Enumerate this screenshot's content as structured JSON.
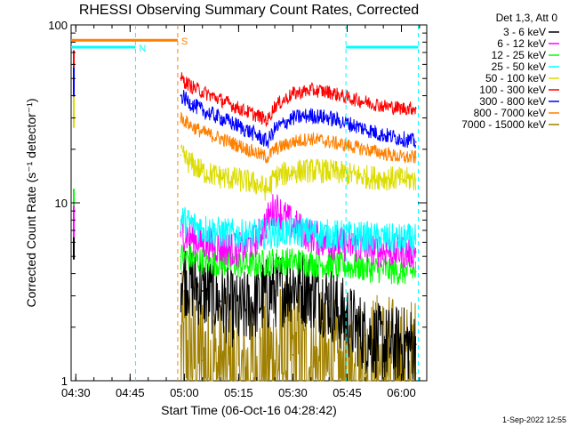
{
  "chart_data": {
    "type": "line",
    "title": "RHESSI Observing Summary Count Rates, Corrected",
    "xlabel": "Start Time (06-Oct-16 04:28:42)",
    "ylabel": "Corrected Count Rate (s⁻¹ detector⁻¹)",
    "y_scale": "log",
    "ylim": [
      1,
      100
    ],
    "xlim": [
      "04:28:42",
      "06:07:00"
    ],
    "x_ticks": [
      "04:30",
      "04:45",
      "05:00",
      "05:15",
      "05:30",
      "05:45",
      "06:00"
    ],
    "y_ticks": [
      "1",
      "10",
      "100"
    ],
    "legend_title": "Det 1,3, Att 0",
    "legend_position": "right",
    "grid": false,
    "footer": "1-Sep-2022 12:55",
    "annotations": [
      {
        "label": "N",
        "color": "#00ffff",
        "x_start": "04:28:42",
        "x_end": "04:46:30",
        "y": 75
      },
      {
        "label": "S",
        "color": "#ff8000",
        "x_start": "04:28:42",
        "x_end": "04:58:10",
        "y": 82
      },
      {
        "label": "",
        "color": "#00ffff",
        "x_start": "05:44:40",
        "x_end": "06:04:40",
        "y": 75
      }
    ],
    "vlines": [
      {
        "x": "04:46:30",
        "color": "#00ffff"
      },
      {
        "x": "04:58:10",
        "color": "#ff8000"
      },
      {
        "x": "05:44:40",
        "color": "#00ffff"
      },
      {
        "x": "06:04:40",
        "color": "#00ffff"
      }
    ],
    "series": [
      {
        "name": "3 - 6 keV",
        "color": "#000000",
        "x": [
          "04:59",
          "05:05",
          "05:10",
          "05:15",
          "05:20",
          "05:25",
          "05:30",
          "05:35",
          "05:40",
          "05:45",
          "05:50",
          "05:55",
          "06:00",
          "06:04"
        ],
        "values": [
          4.0,
          3.2,
          2.8,
          2.4,
          2.8,
          3.2,
          3.5,
          3.2,
          2.8,
          2.2,
          1.8,
          1.6,
          1.6,
          1.6
        ]
      },
      {
        "name": "6 - 12 keV",
        "color": "#ff00ff",
        "x": [
          "04:59",
          "05:05",
          "05:10",
          "05:15",
          "05:20",
          "05:25",
          "05:30",
          "05:35",
          "05:40",
          "05:45",
          "05:50",
          "05:55",
          "06:00",
          "06:04"
        ],
        "values": [
          6.8,
          6.0,
          5.6,
          5.4,
          6.2,
          9.5,
          7.5,
          6.5,
          6.0,
          5.8,
          5.6,
          5.4,
          5.3,
          5.3
        ]
      },
      {
        "name": "12 - 25 keV",
        "color": "#00ff00",
        "x": [
          "04:59",
          "05:05",
          "05:10",
          "05:15",
          "05:20",
          "05:25",
          "05:30",
          "05:35",
          "05:40",
          "05:45",
          "05:50",
          "05:55",
          "06:00",
          "06:04"
        ],
        "values": [
          5.0,
          4.7,
          4.6,
          4.5,
          4.5,
          4.7,
          4.7,
          4.6,
          4.5,
          4.4,
          4.3,
          4.2,
          4.1,
          4.1
        ]
      },
      {
        "name": "25 - 50 keV",
        "color": "#00ffff",
        "x": [
          "04:59",
          "05:05",
          "05:10",
          "05:15",
          "05:20",
          "05:25",
          "05:30",
          "05:35",
          "05:40",
          "05:45",
          "05:50",
          "05:55",
          "06:00",
          "06:04"
        ],
        "values": [
          8.0,
          7.2,
          6.8,
          6.6,
          6.6,
          6.8,
          6.9,
          6.8,
          6.6,
          6.5,
          6.4,
          6.3,
          6.2,
          6.2
        ]
      },
      {
        "name": "50 - 100 keV",
        "color": "#dcdc00",
        "x": [
          "04:59",
          "05:02",
          "05:05",
          "05:10",
          "05:15",
          "05:20",
          "05:23",
          "05:25",
          "05:30",
          "05:35",
          "05:40",
          "05:45",
          "05:50",
          "05:55",
          "06:00",
          "06:04"
        ],
        "values": [
          18.5,
          16.5,
          15.0,
          14.0,
          13.5,
          12.8,
          11.8,
          14.0,
          15.0,
          15.2,
          15.0,
          14.5,
          14.0,
          13.8,
          13.6,
          13.5
        ]
      },
      {
        "name": "100 - 300 keV",
        "color": "#ff0000",
        "x": [
          "04:59",
          "05:02",
          "05:05",
          "05:10",
          "05:15",
          "05:20",
          "05:23",
          "05:25",
          "05:30",
          "05:35",
          "05:40",
          "05:45",
          "05:50",
          "05:55",
          "06:00",
          "06:04"
        ],
        "values": [
          50,
          45,
          42,
          38,
          34,
          31,
          29,
          35,
          41,
          43,
          42,
          39,
          37,
          35,
          34,
          34
        ]
      },
      {
        "name": "300 - 800 keV",
        "color": "#0000ff",
        "x": [
          "04:59",
          "05:02",
          "05:05",
          "05:10",
          "05:15",
          "05:20",
          "05:23",
          "05:25",
          "05:30",
          "05:35",
          "05:40",
          "05:45",
          "05:50",
          "05:55",
          "06:00",
          "06:04"
        ],
        "values": [
          40,
          36,
          33,
          30,
          27,
          24,
          22,
          26,
          30,
          31,
          30,
          28,
          26,
          24,
          23,
          22
        ]
      },
      {
        "name": "800 - 7000 keV",
        "color": "#ff8000",
        "x": [
          "04:59",
          "05:02",
          "05:05",
          "05:10",
          "05:15",
          "05:20",
          "05:23",
          "05:25",
          "05:30",
          "05:35",
          "05:40",
          "05:45",
          "05:50",
          "05:55",
          "06:00",
          "06:04"
        ],
        "values": [
          30,
          27,
          25,
          23,
          21,
          19,
          18,
          20,
          22,
          23,
          22,
          21,
          20,
          19,
          18,
          18
        ]
      },
      {
        "name": "7000 - 15000 keV",
        "color": "#a08000",
        "x": [
          "04:59",
          "05:05",
          "05:10",
          "05:15",
          "05:20",
          "05:25",
          "05:30",
          "05:35",
          "05:40",
          "05:45",
          "05:50",
          "05:55",
          "06:00",
          "06:04"
        ],
        "values": [
          1.5,
          1.3,
          1.1,
          1.0,
          1.1,
          1.3,
          1.4,
          1.2,
          1.1,
          1.0,
          1.1,
          1.2,
          1.0,
          1.1
        ]
      }
    ]
  }
}
